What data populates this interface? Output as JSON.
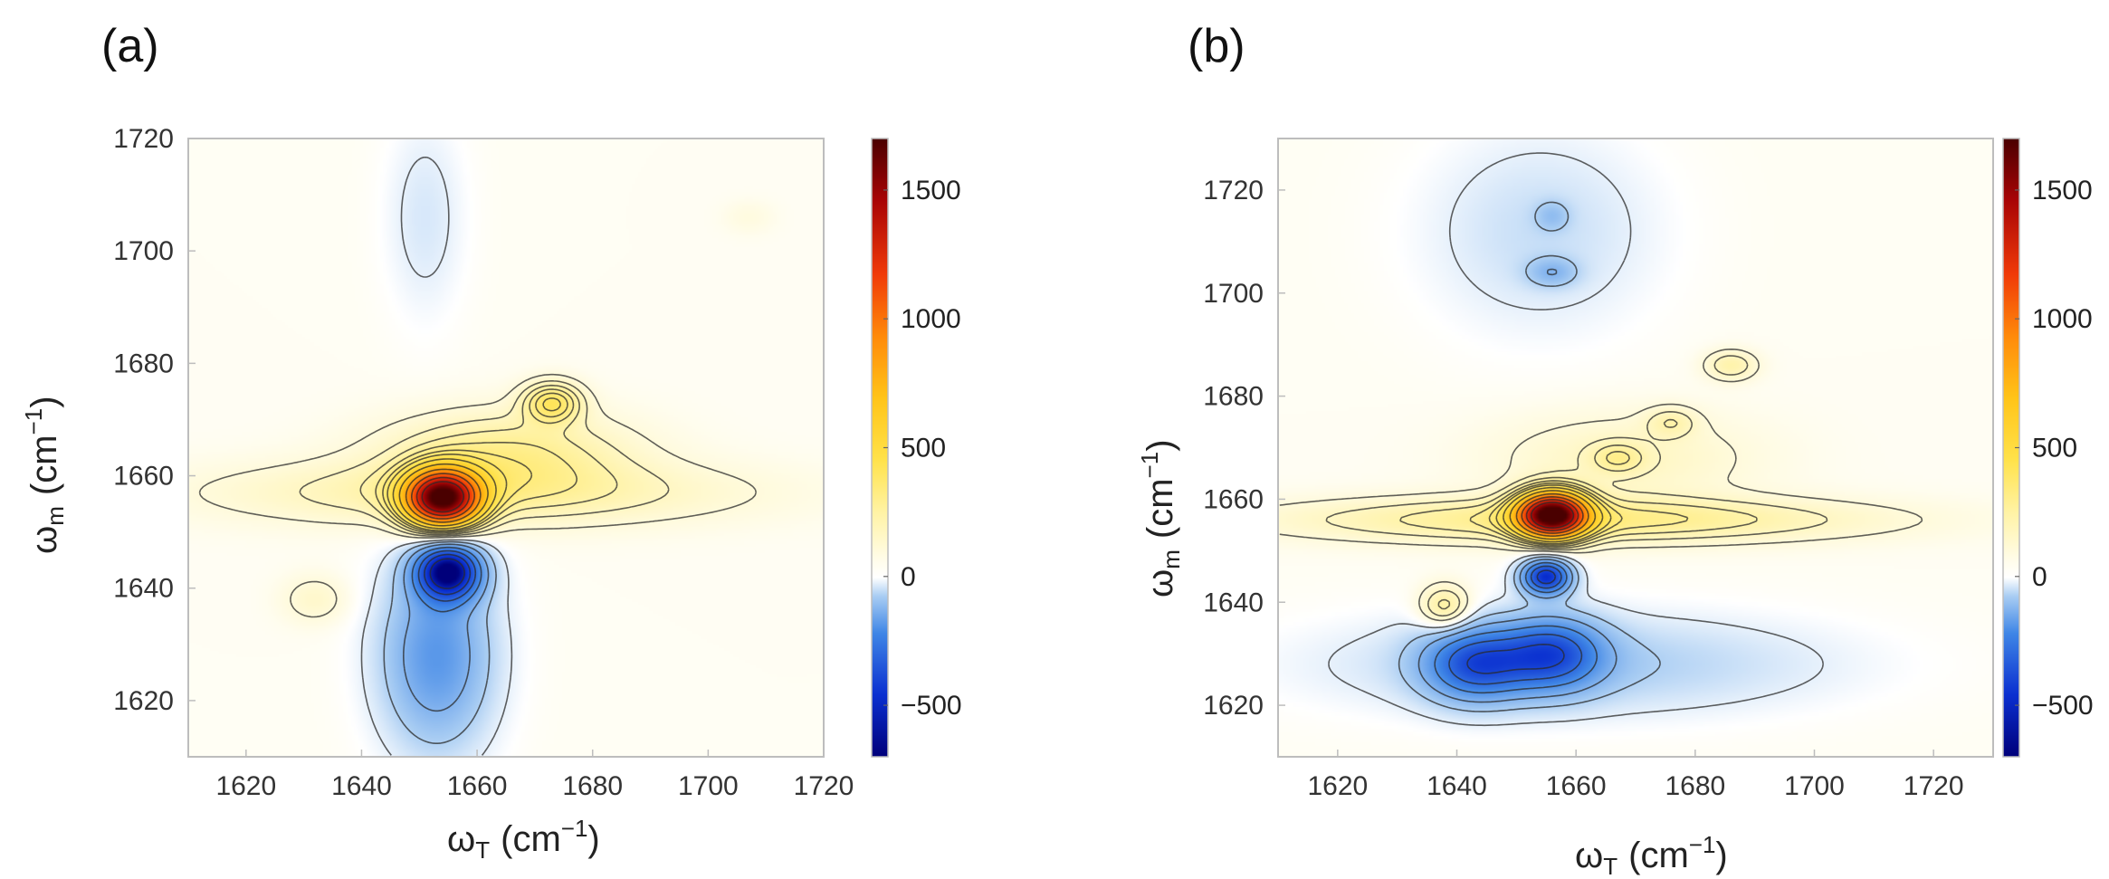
{
  "chart_data": [
    {
      "type": "heatmap",
      "subtype": "2D IR spectrum (filled contour)",
      "panel_label": "(a)",
      "xlabel_main": "ω",
      "xlabel_sub": "T",
      "xlabel_unit_open": "(cm",
      "xlabel_unit_exp": "−1",
      "xlabel_unit_close": ")",
      "ylabel_main": "ω",
      "ylabel_sub": "m",
      "ylabel_unit_open": "(cm",
      "ylabel_unit_exp": "−1",
      "ylabel_unit_close": ")",
      "xlim": [
        1610,
        1720
      ],
      "ylim": [
        1610,
        1720
      ],
      "xticks": [
        "1620",
        "1640",
        "1660",
        "1680",
        "1700",
        "1720"
      ],
      "yticks": [
        "1620",
        "1640",
        "1660",
        "1680",
        "1700",
        "1720"
      ],
      "colorbar": {
        "min": -700,
        "max": 1700,
        "ticks": [
          "1500",
          "1000",
          "500",
          "0",
          "−500"
        ],
        "tick_values": [
          1500,
          1000,
          500,
          0,
          -500
        ]
      },
      "features": [
        {
          "name": "main positive peak",
          "x": 1654,
          "y": 1656,
          "sx": 4.5,
          "sy": 3.5,
          "amp": 1650
        },
        {
          "name": "main negative peak",
          "x": 1655,
          "y": 1643,
          "sx": 4.0,
          "sy": 3.5,
          "amp": -640
        },
        {
          "name": "cross peak",
          "x": 1673,
          "y": 1673,
          "sx": 3.5,
          "sy": 2.5,
          "amp": 340
        },
        {
          "name": "diagonal ridge",
          "x": 1665,
          "y": 1664,
          "sx": 14,
          "sy": 5,
          "amp": 230
        },
        {
          "name": "horizontal band",
          "x": 1660,
          "y": 1657,
          "sx": 30,
          "sy": 4,
          "amp": 180
        },
        {
          "name": "negative tail",
          "x": 1653,
          "y": 1628,
          "sx": 7,
          "sy": 12,
          "amp": -280
        },
        {
          "name": "upper negative region",
          "x": 1651,
          "y": 1706,
          "sx": 5,
          "sy": 13,
          "amp": -70
        },
        {
          "name": "small positive island",
          "x": 1632,
          "y": 1638,
          "sx": 4,
          "sy": 3,
          "amp": 90
        },
        {
          "name": "weak positive spot",
          "x": 1707,
          "y": 1706,
          "sx": 3,
          "sy": 2,
          "amp": 40
        }
      ]
    },
    {
      "type": "heatmap",
      "subtype": "2D IR spectrum (filled contour)",
      "panel_label": "(b)",
      "xlabel_main": "ω",
      "xlabel_sub": "T",
      "xlabel_unit_open": "(cm",
      "xlabel_unit_exp": "−1",
      "xlabel_unit_close": ")",
      "ylabel_main": "ω",
      "ylabel_sub": "m",
      "ylabel_unit_open": "(cm",
      "ylabel_unit_exp": "−1",
      "ylabel_unit_close": ")",
      "xlim": [
        1610,
        1730
      ],
      "ylim": [
        1610,
        1730
      ],
      "xticks": [
        "1620",
        "1640",
        "1660",
        "1680",
        "1700",
        "1720"
      ],
      "yticks": [
        "1620",
        "1640",
        "1660",
        "1680",
        "1700",
        "1720"
      ],
      "colorbar": {
        "min": -700,
        "max": 1700,
        "ticks": [
          "1500",
          "1000",
          "500",
          "0",
          "−500"
        ],
        "tick_values": [
          1500,
          1000,
          500,
          0,
          -500
        ]
      },
      "features": [
        {
          "name": "main positive peak",
          "x": 1656,
          "y": 1657,
          "sx": 4.0,
          "sy": 3.0,
          "amp": 1700
        },
        {
          "name": "main negative peak",
          "x": 1655,
          "y": 1645,
          "sx": 3.0,
          "sy": 2.5,
          "amp": -560
        },
        {
          "name": "horizontal band",
          "x": 1660,
          "y": 1656,
          "sx": 32,
          "sy": 3,
          "amp": 260
        },
        {
          "name": "positive lobe",
          "x": 1638,
          "y": 1639,
          "sx": 3,
          "sy": 3,
          "amp": 230
        },
        {
          "name": "cross peak upper",
          "x": 1686,
          "y": 1686,
          "sx": 3,
          "sy": 2,
          "amp": 170
        },
        {
          "name": "cross peak",
          "x": 1676,
          "y": 1675,
          "sx": 3,
          "sy": 2,
          "amp": 130
        },
        {
          "name": "cross peak lower",
          "x": 1667,
          "y": 1668,
          "sx": 3,
          "sy": 2,
          "amp": 150
        },
        {
          "name": "diagonal ridge",
          "x": 1668,
          "y": 1668,
          "sx": 15,
          "sy": 6,
          "amp": 110
        },
        {
          "name": "negative region left",
          "x": 1643,
          "y": 1628,
          "sx": 6,
          "sy": 5,
          "amp": -380
        },
        {
          "name": "negative region right",
          "x": 1656,
          "y": 1630,
          "sx": 6,
          "sy": 5,
          "amp": -380
        },
        {
          "name": "negative broad band",
          "x": 1660,
          "y": 1628,
          "sx": 30,
          "sy": 7,
          "amp": -130
        },
        {
          "name": "upper negative region",
          "x": 1654,
          "y": 1712,
          "sx": 14,
          "sy": 14,
          "amp": -90
        },
        {
          "name": "negative spot 1704",
          "x": 1656,
          "y": 1704,
          "sx": 3,
          "sy": 2,
          "amp": -130
        },
        {
          "name": "negative spot 1715",
          "x": 1656,
          "y": 1715,
          "sx": 2,
          "sy": 2,
          "amp": -90
        }
      ]
    }
  ]
}
